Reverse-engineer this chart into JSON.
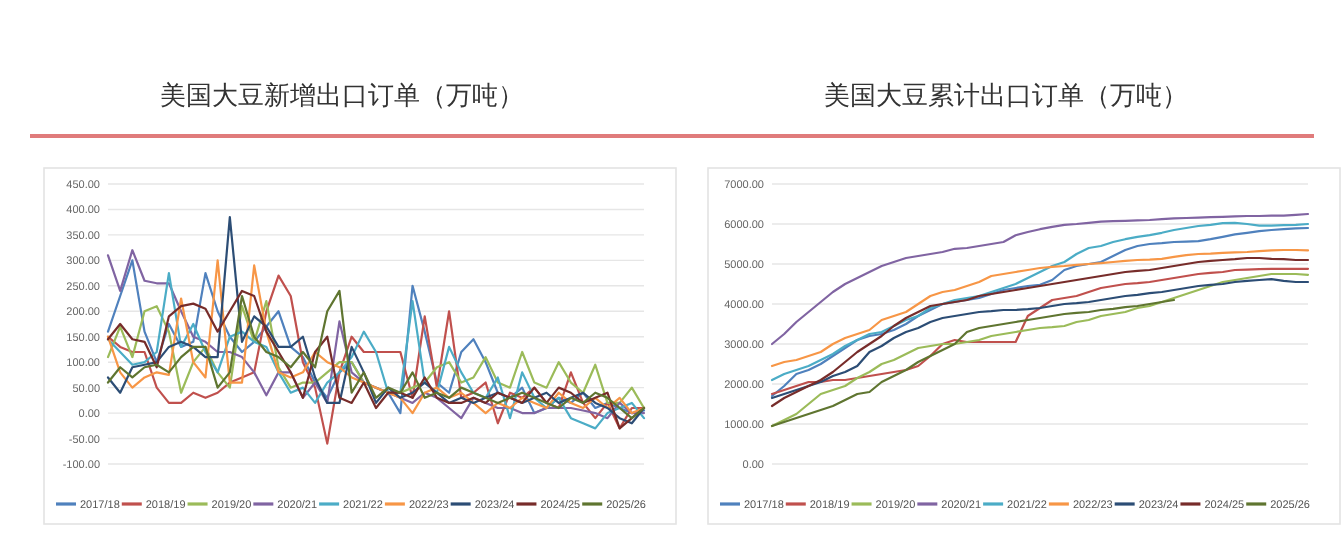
{
  "chart_data": [
    {
      "type": "line",
      "title": "美国大豆新增出口订单（万吨）",
      "categories": [
        null,
        null,
        null,
        null,
        null,
        null,
        null,
        null,
        null,
        null,
        null,
        null,
        null,
        null,
        null,
        null,
        null,
        null,
        null,
        null,
        null,
        null,
        null,
        null,
        null,
        null,
        null,
        null,
        null,
        null,
        null,
        null,
        null,
        null,
        null,
        null,
        null,
        null,
        null,
        null,
        null,
        null,
        null,
        null,
        null
      ],
      "series": [
        {
          "name": "2017/18",
          "color": "#4f81bd",
          "values": [
            160,
            230,
            300,
            160,
            100,
            175,
            130,
            140,
            275,
            200,
            150,
            120,
            140,
            170,
            200,
            130,
            110,
            60,
            30,
            80,
            100,
            60,
            50,
            40,
            0,
            250,
            160,
            60,
            40,
            120,
            145,
            100,
            40,
            30,
            50,
            0,
            10,
            30,
            20,
            40,
            10,
            20,
            10,
            0,
            5
          ]
        },
        {
          "name": "2018/19",
          "color": "#c0504d",
          "values": [
            150,
            130,
            120,
            120,
            50,
            20,
            20,
            40,
            30,
            40,
            60,
            70,
            80,
            200,
            270,
            230,
            100,
            50,
            -60,
            80,
            150,
            120,
            120,
            120,
            120,
            30,
            190,
            50,
            200,
            30,
            40,
            60,
            -20,
            40,
            30,
            50,
            20,
            10,
            80,
            20,
            -10,
            20,
            -30,
            10,
            10
          ]
        },
        {
          "name": "2019/20",
          "color": "#9bbb59",
          "values": [
            110,
            170,
            110,
            200,
            210,
            160,
            40,
            100,
            130,
            80,
            50,
            210,
            140,
            220,
            90,
            50,
            60,
            60,
            80,
            100,
            100,
            60,
            50,
            40,
            40,
            50,
            60,
            90,
            100,
            60,
            70,
            110,
            60,
            50,
            120,
            60,
            50,
            100,
            60,
            40,
            95,
            20,
            20,
            50,
            10
          ]
        },
        {
          "name": "2020/21",
          "color": "#8064a2",
          "values": [
            310,
            240,
            320,
            260,
            255,
            255,
            200,
            150,
            140,
            120,
            120,
            110,
            80,
            35,
            80,
            80,
            30,
            60,
            20,
            180,
            80,
            60,
            50,
            40,
            30,
            20,
            40,
            30,
            10,
            -10,
            30,
            20,
            10,
            10,
            0,
            0,
            10,
            10,
            10,
            5,
            0,
            -10,
            20,
            0,
            0
          ]
        },
        {
          "name": "2021/22",
          "color": "#4bacc6",
          "values": [
            145,
            120,
            95,
            100,
            120,
            275,
            130,
            175,
            120,
            80,
            150,
            160,
            140,
            130,
            80,
            40,
            50,
            20,
            60,
            80,
            110,
            160,
            120,
            40,
            40,
            220,
            60,
            40,
            130,
            80,
            40,
            30,
            70,
            -10,
            80,
            30,
            10,
            30,
            -10,
            -20,
            -30,
            0,
            10,
            20,
            -10
          ]
        },
        {
          "name": "2022/23",
          "color": "#f79646",
          "values": [
            150,
            80,
            50,
            70,
            80,
            75,
            225,
            100,
            70,
            300,
            60,
            60,
            290,
            160,
            80,
            70,
            80,
            120,
            100,
            90,
            70,
            60,
            50,
            40,
            30,
            0,
            40,
            50,
            30,
            40,
            20,
            0,
            20,
            10,
            30,
            20,
            10,
            40,
            20,
            10,
            30,
            10,
            30,
            0,
            10
          ]
        },
        {
          "name": "2023/24",
          "color": "#2c4d75",
          "values": [
            70,
            40,
            90,
            95,
            100,
            130,
            140,
            130,
            110,
            110,
            385,
            140,
            190,
            170,
            130,
            130,
            150,
            70,
            20,
            20,
            130,
            80,
            20,
            50,
            30,
            40,
            60,
            40,
            20,
            30,
            20,
            30,
            40,
            30,
            20,
            30,
            40,
            20,
            30,
            40,
            20,
            10,
            -10,
            -20,
            10
          ]
        },
        {
          "name": "2024/25",
          "color": "#772c2a",
          "values": [
            145,
            175,
            145,
            140,
            90,
            190,
            210,
            215,
            205,
            160,
            200,
            240,
            230,
            160,
            120,
            80,
            30,
            120,
            150,
            30,
            20,
            60,
            10,
            40,
            40,
            30,
            70,
            30,
            20,
            20,
            30,
            20,
            40,
            30,
            20,
            50,
            20,
            50,
            40,
            20,
            30,
            40,
            -30,
            -10,
            10
          ]
        },
        {
          "name": "2025/26",
          "color": "#5f7530",
          "values": [
            60,
            90,
            70,
            90,
            95,
            80,
            110,
            130,
            130,
            50,
            80,
            230,
            150,
            120,
            110,
            90,
            120,
            90,
            200,
            240,
            40,
            80,
            30,
            50,
            40,
            80,
            30,
            40,
            30,
            50,
            40,
            30,
            20,
            30,
            40,
            30,
            20,
            10,
            30,
            20,
            40,
            30,
            10,
            -10,
            10
          ]
        }
      ],
      "ylim": [
        -100,
        450
      ],
      "yticks": [
        {
          "value": -100,
          "label": "-100.00"
        },
        {
          "value": -50,
          "label": "-50.00"
        },
        {
          "value": 0,
          "label": "0.00"
        },
        {
          "value": 50,
          "label": "50.00"
        },
        {
          "value": 100,
          "label": "100.00"
        },
        {
          "value": 150,
          "label": "150.00"
        },
        {
          "value": 200,
          "label": "200.00"
        },
        {
          "value": 250,
          "label": "250.00"
        },
        {
          "value": 300,
          "label": "300.00"
        },
        {
          "value": 350,
          "label": "350.00"
        },
        {
          "value": 400,
          "label": "400.00"
        },
        {
          "value": 450,
          "label": "450.00"
        }
      ],
      "grid": "y",
      "legend": "bottom"
    },
    {
      "type": "line",
      "title": "美国大豆累计出口订单（万吨）",
      "categories": [
        null,
        null,
        null,
        null,
        null,
        null,
        null,
        null,
        null,
        null,
        null,
        null,
        null,
        null,
        null,
        null,
        null,
        null,
        null,
        null,
        null,
        null,
        null,
        null,
        null,
        null,
        null,
        null,
        null,
        null,
        null,
        null,
        null,
        null,
        null,
        null,
        null,
        null,
        null,
        null,
        null,
        null,
        null,
        null,
        null
      ],
      "series": [
        {
          "name": "2017/18",
          "color": "#4f81bd",
          "values": [
            1700,
            1950,
            2250,
            2350,
            2500,
            2700,
            2900,
            3100,
            3200,
            3250,
            3350,
            3500,
            3700,
            3850,
            4000,
            4050,
            4100,
            4150,
            4250,
            4350,
            4400,
            4450,
            4480,
            4600,
            4850,
            4950,
            5000,
            5050,
            5200,
            5350,
            5450,
            5500,
            5520,
            5550,
            5560,
            5570,
            5620,
            5680,
            5740,
            5780,
            5820,
            5850,
            5870,
            5890,
            5900
          ]
        },
        {
          "name": "2018/19",
          "color": "#c0504d",
          "values": [
            1750,
            1850,
            1950,
            2050,
            2050,
            2100,
            2100,
            2150,
            2200,
            2250,
            2300,
            2350,
            2450,
            2700,
            3000,
            3100,
            3050,
            3050,
            3050,
            3050,
            3050,
            3700,
            3900,
            4100,
            4150,
            4200,
            4300,
            4400,
            4450,
            4500,
            4520,
            4550,
            4600,
            4650,
            4700,
            4750,
            4780,
            4800,
            4850,
            4860,
            4870,
            4880,
            4880,
            4880,
            4880
          ]
        },
        {
          "name": "2019/20",
          "color": "#9bbb59",
          "values": [
            950,
            1100,
            1250,
            1500,
            1750,
            1850,
            1950,
            2150,
            2300,
            2500,
            2600,
            2750,
            2900,
            2950,
            3000,
            3000,
            3050,
            3100,
            3200,
            3250,
            3300,
            3350,
            3400,
            3420,
            3450,
            3550,
            3600,
            3700,
            3750,
            3800,
            3900,
            3950,
            4050,
            4150,
            4250,
            4350,
            4450,
            4550,
            4600,
            4650,
            4700,
            4750,
            4750,
            4750,
            4730
          ]
        },
        {
          "name": "2020/21",
          "color": "#8064a2",
          "values": [
            3000,
            3250,
            3550,
            3800,
            4050,
            4300,
            4500,
            4650,
            4800,
            4950,
            5050,
            5150,
            5200,
            5250,
            5300,
            5380,
            5400,
            5450,
            5500,
            5550,
            5720,
            5800,
            5870,
            5930,
            5980,
            6000,
            6030,
            6060,
            6070,
            6080,
            6090,
            6100,
            6120,
            6140,
            6150,
            6160,
            6170,
            6180,
            6190,
            6200,
            6200,
            6210,
            6210,
            6230,
            6250
          ]
        },
        {
          "name": "2021/22",
          "color": "#4bacc6",
          "values": [
            2100,
            2250,
            2350,
            2450,
            2600,
            2750,
            2950,
            3100,
            3250,
            3300,
            3450,
            3600,
            3700,
            3900,
            4000,
            4100,
            4150,
            4200,
            4300,
            4400,
            4500,
            4650,
            4800,
            4950,
            5050,
            5250,
            5400,
            5450,
            5550,
            5620,
            5680,
            5720,
            5780,
            5850,
            5900,
            5950,
            5980,
            6020,
            6030,
            6000,
            5960,
            5960,
            5970,
            5980,
            6000
          ]
        },
        {
          "name": "2022/23",
          "color": "#f79646",
          "values": [
            2450,
            2550,
            2600,
            2700,
            2800,
            3000,
            3150,
            3250,
            3350,
            3600,
            3700,
            3800,
            4000,
            4200,
            4300,
            4350,
            4450,
            4550,
            4700,
            4750,
            4800,
            4850,
            4900,
            4930,
            4950,
            4980,
            5000,
            5020,
            5050,
            5080,
            5100,
            5110,
            5130,
            5180,
            5220,
            5250,
            5260,
            5280,
            5290,
            5300,
            5320,
            5340,
            5350,
            5350,
            5340
          ]
        },
        {
          "name": "2023/24",
          "color": "#2c4d75",
          "values": [
            1650,
            1750,
            1850,
            1950,
            2050,
            2200,
            2300,
            2450,
            2800,
            2950,
            3150,
            3300,
            3400,
            3550,
            3650,
            3700,
            3750,
            3800,
            3820,
            3850,
            3850,
            3870,
            3900,
            3950,
            4000,
            4020,
            4050,
            4100,
            4150,
            4200,
            4230,
            4270,
            4300,
            4350,
            4400,
            4450,
            4480,
            4500,
            4550,
            4580,
            4600,
            4620,
            4580,
            4550,
            4550
          ]
        },
        {
          "name": "2024/25",
          "color": "#772c2a",
          "values": [
            1450,
            1650,
            1800,
            1950,
            2100,
            2300,
            2550,
            2800,
            3000,
            3200,
            3450,
            3650,
            3800,
            3950,
            4000,
            4050,
            4100,
            4200,
            4250,
            4300,
            4350,
            4400,
            4450,
            4500,
            4550,
            4600,
            4650,
            4700,
            4750,
            4800,
            4830,
            4850,
            4900,
            4950,
            5000,
            5050,
            5080,
            5100,
            5120,
            5150,
            5150,
            5130,
            5120,
            5100,
            5100
          ]
        },
        {
          "name": "2025/26",
          "color": "#5f7530",
          "values": [
            950,
            1050,
            1150,
            1250,
            1350,
            1450,
            1600,
            1750,
            1800,
            2050,
            2200,
            2350,
            2550,
            2700,
            2850,
            3000,
            3300,
            3400,
            3450,
            3500,
            3550,
            3600,
            3650,
            3700,
            3750,
            3780,
            3800,
            3850,
            3880,
            3920,
            3950,
            4000,
            4050,
            4100,
            null,
            null,
            null,
            null,
            null,
            null,
            null,
            null,
            null,
            null,
            null
          ]
        }
      ],
      "ylim": [
        0,
        7000
      ],
      "yticks": [
        {
          "value": 0,
          "label": "0.00"
        },
        {
          "value": 1000,
          "label": "1000.00"
        },
        {
          "value": 2000,
          "label": "2000.00"
        },
        {
          "value": 3000,
          "label": "3000.00"
        },
        {
          "value": 4000,
          "label": "4000.00"
        },
        {
          "value": 5000,
          "label": "5000.00"
        },
        {
          "value": 6000,
          "label": "6000.00"
        },
        {
          "value": 7000,
          "label": "7000.00"
        }
      ],
      "grid": "y",
      "legend": "bottom"
    }
  ]
}
